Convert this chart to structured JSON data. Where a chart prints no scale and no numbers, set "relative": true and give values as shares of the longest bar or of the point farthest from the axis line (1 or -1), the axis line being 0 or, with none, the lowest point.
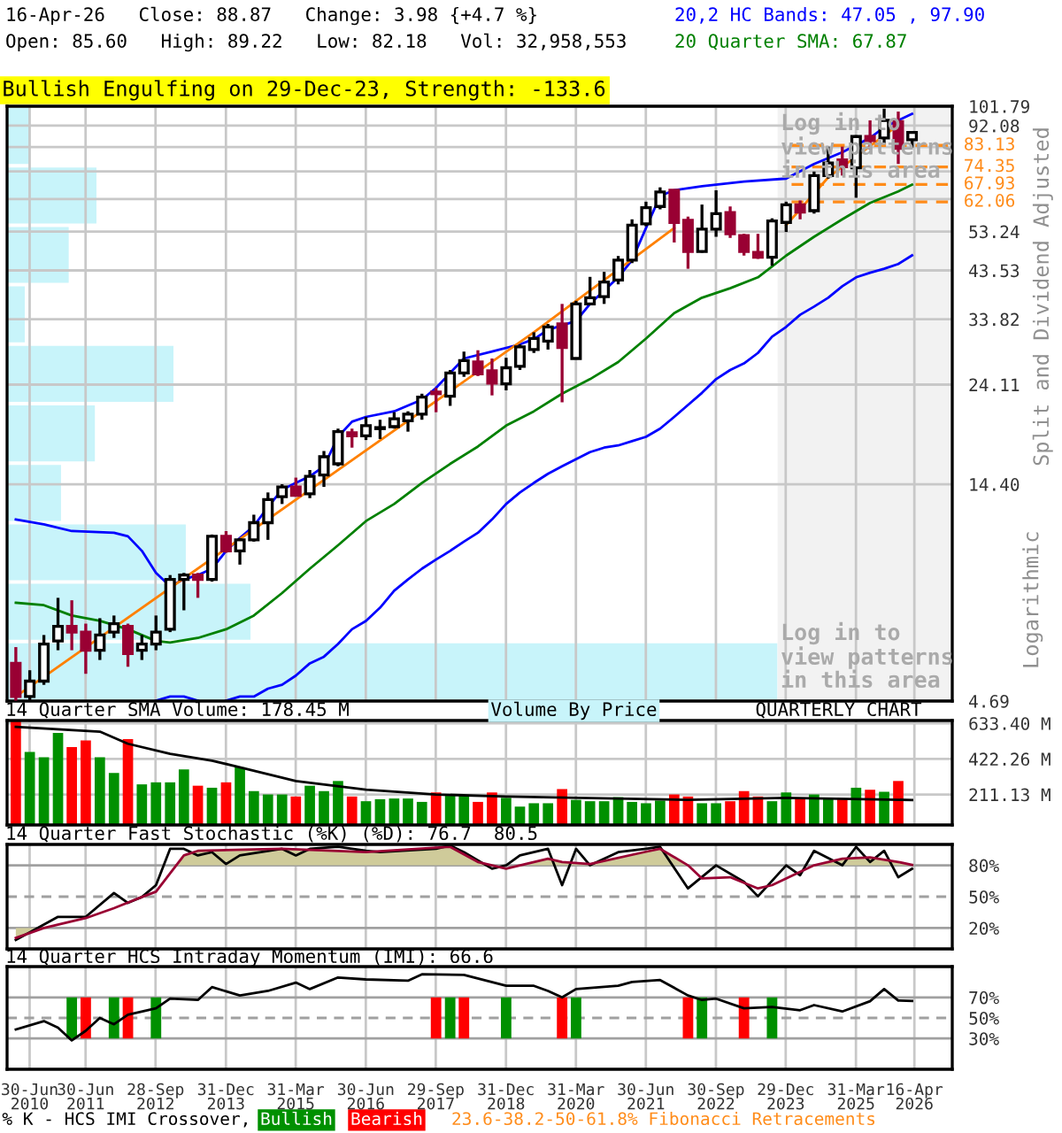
{
  "chart_data": [
    {
      "type": "candlestick",
      "title": "16-Apr-26   Close: 88.87   Change: 3.98 {+4.7 %}",
      "subtitle": "Open: 85.60   High: 89.22   Low: 82.18   Vol: 32,958,553",
      "ylabel": "Split and Dividend Adjusted",
      "x": [
        "2010-04-01",
        "2010-07-01",
        "2010-10-01",
        "2011-01-01",
        "2011-04-01",
        "2011-07-01",
        "2011-10-01",
        "2012-01-01",
        "2012-04-01",
        "2012-07-01",
        "2012-10-01",
        "2013-01-01",
        "2013-04-01",
        "2013-07-01",
        "2013-10-01",
        "2014-01-01",
        "2014-04-01",
        "2014-07-01",
        "2014-10-01",
        "2015-01-01",
        "2015-04-01",
        "2015-07-01",
        "2015-10-01",
        "2016-01-01",
        "2016-04-01",
        "2016-07-01",
        "2016-10-01",
        "2017-01-01",
        "2017-04-01",
        "2017-07-01",
        "2017-10-01",
        "2018-01-01",
        "2018-04-01",
        "2018-07-01",
        "2018-10-01",
        "2019-01-01",
        "2019-04-01",
        "2019-07-01",
        "2019-10-01",
        "2020-01-01",
        "2020-04-01",
        "2020-07-01",
        "2020-10-01",
        "2021-01-01",
        "2021-04-01",
        "2021-07-01",
        "2021-10-01",
        "2022-01-01",
        "2022-04-01",
        "2022-07-01",
        "2022-10-01",
        "2023-01-01",
        "2023-04-01",
        "2023-07-01",
        "2023-10-01",
        "2024-01-01",
        "2024-04-01",
        "2024-07-01",
        "2024-10-01",
        "2025-01-01",
        "2025-04-01",
        "2025-07-01",
        "2025-10-01",
        "2026-01-01",
        "2026-04-01"
      ],
      "ohlc": [
        [
          5.7,
          6.2,
          4.7,
          4.8
        ],
        [
          4.8,
          5.5,
          4.7,
          5.2
        ],
        [
          5.2,
          6.6,
          5.1,
          6.3
        ],
        [
          6.4,
          8.0,
          6.1,
          6.9
        ],
        [
          6.9,
          7.9,
          6.1,
          6.7
        ],
        [
          6.7,
          7.0,
          5.4,
          6.1
        ],
        [
          6.1,
          7.2,
          5.8,
          6.6
        ],
        [
          6.7,
          7.3,
          6.5,
          7.0
        ],
        [
          6.9,
          7.0,
          5.6,
          6.0
        ],
        [
          6.1,
          6.6,
          5.8,
          6.3
        ],
        [
          6.3,
          7.3,
          6.1,
          6.7
        ],
        [
          6.8,
          9.0,
          6.7,
          8.8
        ],
        [
          8.8,
          9.1,
          7.5,
          9.0
        ],
        [
          9.0,
          9.1,
          8.0,
          8.8
        ],
        [
          8.8,
          11.1,
          8.7,
          11.0
        ],
        [
          11.0,
          11.3,
          10.1,
          10.2
        ],
        [
          10.2,
          10.9,
          9.5,
          10.8
        ],
        [
          10.8,
          12.3,
          10.7,
          11.8
        ],
        [
          11.8,
          13.8,
          10.8,
          13.3
        ],
        [
          13.5,
          14.4,
          13.0,
          14.2
        ],
        [
          14.2,
          14.9,
          13.5,
          13.6
        ],
        [
          13.7,
          15.5,
          13.4,
          15.0
        ],
        [
          15.1,
          17.1,
          14.2,
          16.6
        ],
        [
          16.0,
          19.2,
          15.8,
          18.9
        ],
        [
          18.8,
          19.2,
          17.4,
          18.5
        ],
        [
          18.5,
          20.4,
          18.1,
          19.5
        ],
        [
          19.2,
          20.1,
          18.2,
          19.3
        ],
        [
          19.4,
          20.9,
          19.2,
          20.2
        ],
        [
          20.0,
          21.0,
          18.9,
          20.7
        ],
        [
          20.7,
          23.0,
          20.1,
          22.6
        ],
        [
          23.2,
          23.7,
          20.9,
          23.0
        ],
        [
          22.7,
          26.0,
          21.6,
          25.6
        ],
        [
          25.6,
          28.6,
          25.1,
          27.3
        ],
        [
          27.1,
          28.8,
          25.2,
          25.5
        ],
        [
          25.9,
          27.6,
          22.8,
          24.3
        ],
        [
          24.2,
          27.7,
          23.4,
          26.3
        ],
        [
          26.5,
          29.7,
          26.0,
          29.3
        ],
        [
          28.9,
          31.6,
          28.4,
          30.6
        ],
        [
          30.2,
          33.0,
          28.9,
          32.5
        ],
        [
          33.0,
          36.6,
          22.0,
          29.2
        ],
        [
          27.6,
          37.2,
          27.6,
          36.6
        ],
        [
          36.6,
          42.1,
          36.6,
          37.8
        ],
        [
          38.0,
          43.2,
          36.6,
          41.0
        ],
        [
          41.4,
          46.9,
          40.5,
          45.9
        ],
        [
          45.9,
          56.7,
          45.2,
          55.0
        ],
        [
          55.4,
          62.1,
          54.7,
          60.2
        ],
        [
          60.6,
          66.9,
          59.7,
          65.3
        ],
        [
          65.9,
          65.9,
          50.3,
          55.8
        ],
        [
          56.4,
          57.5,
          43.9,
          48.0
        ],
        [
          48.0,
          61.2,
          47.7,
          53.9
        ],
        [
          53.9,
          65.9,
          51.8,
          58.4
        ],
        [
          58.7,
          60.6,
          51.5,
          52.6
        ],
        [
          52.1,
          52.6,
          47.0,
          48.0
        ],
        [
          47.8,
          52.6,
          46.2,
          46.6
        ],
        [
          46.6,
          57.0,
          44.6,
          56.2
        ],
        [
          55.8,
          62.1,
          53.1,
          61.1
        ],
        [
          61.1,
          62.5,
          56.7,
          58.9
        ],
        [
          59.3,
          72.6,
          58.4,
          71.1
        ],
        [
          71.1,
          82.6,
          70.0,
          75.9
        ],
        [
          77.1,
          82.6,
          71.1,
          74.4
        ],
        [
          74.0,
          87.6,
          63.4,
          87.0
        ],
        [
          87.0,
          94.6,
          81.4,
          85.2
        ],
        [
          86.4,
          100.5,
          83.9,
          94.6
        ],
        [
          94.0,
          99.0,
          75.5,
          81.9
        ],
        [
          85.6,
          89.22,
          82.18,
          88.87
        ]
      ],
      "series": [
        {
          "name": "20,2 HC Bands: 47.05 , 97.90",
          "type": "line",
          "color": "#0000ff",
          "x": [
            "2010-04-01",
            "2010-10-01",
            "2011-04-01",
            "2012-01-01",
            "2012-04-01",
            "2012-07-01",
            "2012-10-01",
            "2013-01-01",
            "2013-04-01",
            "2013-07-01",
            "2013-10-01",
            "2014-01-01",
            "2014-04-01",
            "2014-07-01",
            "2014-10-01",
            "2015-01-01",
            "2015-04-01",
            "2015-07-01",
            "2015-10-01",
            "2016-01-01",
            "2016-04-01",
            "2016-07-01",
            "2017-01-01",
            "2017-07-01",
            "2017-10-01",
            "2018-01-01",
            "2018-04-01",
            "2018-10-01",
            "2019-04-01",
            "2019-07-01",
            "2019-10-01",
            "2020-04-01",
            "2020-07-01",
            "2021-01-01",
            "2021-04-01",
            "2021-07-01",
            "2021-10-01",
            "2022-01-01",
            "2022-07-01",
            "2023-04-01",
            "2024-01-01",
            "2024-07-01",
            "2025-01-01",
            "2025-07-01",
            "2025-10-01",
            "2026-04-01"
          ],
          "values": [
            12.0,
            11.7,
            11.3,
            11.2,
            11.0,
            10.2,
            9.1,
            8.5,
            8.8,
            9.0,
            9.3,
            10.2,
            10.9,
            11.6,
            12.8,
            14.0,
            14.5,
            15.0,
            15.8,
            18.4,
            19.9,
            20.4,
            21.0,
            22.3,
            23.7,
            25.6,
            27.6,
            28.6,
            29.7,
            30.5,
            32.0,
            33.5,
            36.6,
            42.0,
            45.9,
            54.2,
            64.0,
            65.9,
            67.3,
            68.9,
            70.0,
            75.5,
            80.2,
            86.4,
            91.3,
            97.9
          ]
        },
        {
          "type": "line",
          "color": "#0000ff",
          "values": [
            null,
            null,
            null,
            null,
            null,
            null,
            null,
            null,
            null,
            null,
            4.7,
            4.8,
            4.8,
            4.7,
            null,
            4.7,
            4.8,
            4.8,
            5.0,
            5.1,
            5.35,
            5.7,
            5.9,
            6.3,
            6.8,
            7.1,
            7.6,
            8.3,
            8.8,
            9.3,
            9.75,
            10.2,
            10.7,
            11.2,
            12.0,
            13.0,
            13.8,
            14.5,
            15.2,
            15.8,
            16.4,
            17.0,
            17.4,
            17.6,
            18.0,
            18.4,
            19.2,
            20.4,
            21.7,
            23.1,
            24.8,
            26.0,
            26.9,
            28.4,
            30.9,
            32.5,
            34.6,
            36.1,
            37.8,
            40.1,
            42.0,
            43.0,
            43.9,
            45.0,
            47.05
          ]
        },
        {
          "name": "20 Quarter SMA: 67.87",
          "type": "line",
          "color": "#008000",
          "x": [
            "2010-04-01",
            "2010-10-01",
            "2011-04-01",
            "2011-10-01",
            "2012-04-01",
            "2012-10-01",
            "2013-01-01",
            "2013-07-01",
            "2014-01-01",
            "2014-07-01",
            "2015-01-01",
            "2015-07-01",
            "2016-01-01",
            "2016-07-01",
            "2017-01-01",
            "2017-07-01",
            "2018-01-01",
            "2018-07-01",
            "2019-01-01",
            "2019-07-01",
            "2020-01-01",
            "2020-07-01",
            "2021-01-01",
            "2021-07-01",
            "2022-01-01",
            "2022-07-01",
            "2023-01-01",
            "2023-07-01",
            "2024-01-01",
            "2024-07-01",
            "2025-01-01",
            "2025-07-01",
            "2026-01-01",
            "2026-04-01"
          ],
          "values": [
            7.8,
            7.7,
            7.3,
            7.1,
            6.8,
            6.4,
            6.35,
            6.5,
            6.8,
            7.3,
            8.2,
            9.3,
            10.5,
            11.9,
            13.0,
            14.5,
            16.0,
            17.5,
            19.5,
            21.0,
            23.0,
            24.8,
            27.1,
            30.6,
            34.9,
            37.8,
            39.7,
            42.0,
            47.0,
            51.8,
            56.7,
            61.7,
            65.5,
            67.87
          ]
        },
        {
          "type": "line",
          "color": "#ff8000",
          "x": [
            "2010-04-01",
            "2019-07-01",
            "2022-01-01",
            "2023-01-01",
            "2024-01-01",
            "2024-10-01",
            "2026-01-01"
          ],
          "values": [
            4.8,
            31.6,
            54.2,
            null,
            55.0,
            70.4,
            92.4
          ]
        }
      ],
      "xlim": [
        "2010-02-03",
        "2026-12-19"
      ],
      "ylim": [
        4.69,
        101.79
      ],
      "log": true,
      "xticks": [
        {
          "value": "2010-06-30",
          "label": null
        },
        {
          "value": "2011-06-30",
          "label": null
        },
        {
          "value": "2012-09-28",
          "label": null
        },
        {
          "value": "2013-12-31",
          "label": null
        },
        {
          "value": "2015-03-31",
          "label": null
        },
        {
          "value": "2016-06-30",
          "label": null
        },
        {
          "value": "2017-09-29",
          "label": null
        },
        {
          "value": "2018-12-31",
          "label": null
        },
        {
          "value": "2020-03-31",
          "label": null
        },
        {
          "value": "2021-06-30",
          "label": null
        },
        {
          "value": "2022-09-30",
          "label": null
        },
        {
          "value": "2023-12-29",
          "label": null
        },
        {
          "value": "2025-03-31",
          "label": null
        },
        {
          "value": "2026-04-16",
          "label": null
        }
      ],
      "yticks": [
        {
          "value": 4.69,
          "label": "4.69"
        },
        {
          "value": 14.4,
          "label": "14.40"
        },
        24.11,
        33.82,
        43.53,
        53.24,
        {
          "value": 62.95,
          "label": null
        },
        {
          "value": 72.66,
          "label": null
        },
        {
          "value": 82.37,
          "label": null
        },
        92.08,
        101.79
      ],
      "grid": true,
      "tick_labels": "y",
      "legend": "top right",
      "ref_lines": [
        {
          "axis": "y",
          "value": 83.13,
          "label": "83.13",
          "color": "#ff8c1a",
          "line_style": "dashed"
        },
        {
          "axis": "y",
          "value": 74.35,
          "label": "74.35",
          "color": "#ff8c1a",
          "line_style": "dashed"
        },
        {
          "axis": "y",
          "value": 67.93,
          "label": "67.93",
          "color": "#ff8c1a",
          "line_style": "dashed"
        },
        {
          "axis": "y",
          "value": 62.06,
          "label": "62.06",
          "color": "#ff8c1a",
          "line_style": "dashed"
        }
      ],
      "bands": [
        {
          "axis": "x",
          "from": "2023-11-06",
          "to": "2026-12-19",
          "label": "Log in to\nview patterns\nin this area",
          "color": "#f2f2f2"
        }
      ],
      "annotations": [
        "Bullish Engulfing on 29-Dec-23, Strength: -133.6",
        "Log in to\nview patterns\nin this area",
        "Logarithmic",
        "23.6-38.2-50-61.8% Fibonacci Retracements"
      ]
    },
    {
      "type": "bar",
      "title": "Volume By Price",
      "orientation": "horizontal",
      "relative": true,
      "tick_labels": false,
      "color": "#c8f4fa",
      "categories": [
        null,
        null,
        null,
        null,
        null,
        null,
        null,
        null,
        null,
        null
      ],
      "values": [
        0.03,
        0.116,
        0.08,
        0.023,
        0.216,
        0.114,
        0.07,
        0.232,
        0.316,
        1
      ]
    },
    {
      "type": "bar",
      "title": "14 Quarter SMA Volume: 178.45 M",
      "x": [
        "2010-04-01",
        "2010-07-01",
        "2010-10-01",
        "2011-01-01",
        "2011-04-01",
        "2011-07-01",
        "2011-10-01",
        "2012-01-01",
        "2012-04-01",
        "2012-07-01",
        "2012-10-01",
        "2013-01-01",
        "2013-04-01",
        "2013-07-01",
        "2013-10-01",
        "2014-01-01",
        "2014-04-01",
        "2014-07-01",
        "2014-10-01",
        "2015-01-01",
        "2015-04-01",
        "2015-07-01",
        "2015-10-01",
        "2016-01-01",
        "2016-04-01",
        "2016-07-01",
        "2016-10-01",
        "2017-01-01",
        "2017-04-01",
        "2017-07-01",
        "2017-10-01",
        "2018-01-01",
        "2018-04-01",
        "2018-07-01",
        "2018-10-01",
        "2019-01-01",
        "2019-04-01",
        "2019-07-01",
        "2019-10-01",
        "2020-01-01",
        "2020-04-01",
        "2020-07-01",
        "2020-10-01",
        "2021-01-01",
        "2021-04-01",
        "2021-07-01",
        "2021-10-01",
        "2022-01-01",
        "2022-04-01",
        "2022-07-01",
        "2022-10-01",
        "2023-01-01",
        "2023-04-01",
        "2023-07-01",
        "2023-10-01",
        "2024-01-01",
        "2024-04-01",
        "2024-07-01",
        "2024-10-01",
        "2025-01-01",
        "2025-04-01",
        "2025-07-01",
        "2025-10-01",
        "2026-01-01",
        "2026-04-01"
      ],
      "series": [
        {
          "type": "bar",
          "values": [
            645,
            464,
            432,
            576,
            492,
            532,
            432,
            339,
            540,
            271,
            283,
            283,
            360,
            263,
            251,
            283,
            372,
            231,
            211,
            211,
            199,
            263,
            231,
            291,
            199,
            171,
            183,
            187,
            187,
            167,
            223,
            203,
            203,
            167,
            223,
            191,
            139,
            159,
            159,
            243,
            179,
            171,
            171,
            195,
            167,
            159,
            175,
            211,
            199,
            159,
            159,
            171,
            231,
            199,
            171,
            223,
            187,
            211,
            187,
            187,
            251,
            239,
            227,
            291,
            32.96
          ],
          "colors": [
            "#ff0000",
            "#009000",
            "#009000",
            "#009000",
            "#ff0000",
            "#ff0000",
            "#009000",
            "#009000",
            "#ff0000",
            "#009000",
            "#009000",
            "#009000",
            "#009000",
            "#ff0000",
            "#009000",
            "#ff0000",
            "#009000",
            "#009000",
            "#009000",
            "#009000",
            "#ff0000",
            "#009000",
            "#009000",
            "#009000",
            "#ff0000",
            "#009000",
            "#009000",
            "#009000",
            "#009000",
            "#009000",
            "#ff0000",
            "#009000",
            "#009000",
            "#ff0000",
            "#ff0000",
            "#009000",
            "#009000",
            "#009000",
            "#009000",
            "#ff0000",
            "#009000",
            "#009000",
            "#009000",
            "#009000",
            "#009000",
            "#009000",
            "#009000",
            "#ff0000",
            "#ff0000",
            "#009000",
            "#009000",
            "#ff0000",
            "#ff0000",
            "#ff0000",
            "#009000",
            "#009000",
            "#ff0000",
            "#009000",
            "#009000",
            "#ff0000",
            "#009000",
            "#ff0000",
            "#009000",
            "#ff0000",
            "#009000"
          ]
        },
        {
          "type": "line",
          "color": "#000000",
          "x": [
            "2010-04-01",
            "2011-10-01",
            "2012-04-01",
            "2013-01-01",
            "2013-10-01",
            "2014-04-01",
            "2015-04-01",
            "2016-07-01",
            "2017-10-01",
            "2019-01-01",
            "2022-04-01",
            "2024-01-01",
            "2026-04-01"
          ],
          "values": [
            612,
            584,
            512,
            452,
            412,
            372,
            291,
            239,
            211,
            199,
            179,
            191,
            178.45
          ]
        }
      ],
      "xlim": [
        "2010-02-03",
        "2026-12-19"
      ],
      "ylim": [
        30,
        650
      ],
      "xticks": [
        {
          "value": "2010-06-30",
          "label": null
        },
        {
          "value": "2011-06-30",
          "label": null
        },
        {
          "value": "2012-09-28",
          "label": null
        },
        {
          "value": "2013-12-31",
          "label": null
        },
        {
          "value": "2015-03-31",
          "label": null
        },
        {
          "value": "2016-06-30",
          "label": null
        },
        {
          "value": "2017-09-29",
          "label": null
        },
        {
          "value": "2018-12-31",
          "label": null
        },
        {
          "value": "2020-03-31",
          "label": null
        },
        {
          "value": "2021-06-30",
          "label": null
        },
        {
          "value": "2022-09-30",
          "label": null
        },
        {
          "value": "2023-12-29",
          "label": null
        },
        {
          "value": "2025-03-31",
          "label": null
        },
        {
          "value": "2026-04-16",
          "label": null
        }
      ],
      "yticks": [
        {
          "value": 211.13,
          "label": "211.13 M"
        },
        {
          "value": 422.26,
          "label": "422.26 M"
        },
        {
          "value": 633.4,
          "label": "633.40 M"
        }
      ],
      "grid": true,
      "tick_labels": "y",
      "annotations": [
        "QUARTERLY CHART"
      ]
    },
    {
      "type": "line",
      "title": "14 Quarter Fast Stochastic (%K) (%D): 76.7  80.5",
      "series": [
        {
          "type": "line",
          "color": "#000000",
          "x": [
            "2010-04-01",
            "2011-01-01",
            "2011-07-01",
            "2012-01-01",
            "2012-04-01",
            "2012-07-01",
            "2012-10-01",
            "2013-01-01",
            "2013-04-01",
            "2013-07-01",
            "2013-10-01",
            "2014-01-01",
            "2014-04-01",
            "2015-01-01",
            "2015-04-01",
            "2015-07-01",
            "2016-01-01",
            "2016-07-01",
            "2016-10-01",
            "2017-10-01",
            "2018-01-01",
            "2018-04-01",
            "2018-10-01",
            "2019-01-01",
            "2019-04-01",
            "2019-10-01",
            "2020-01-01",
            "2020-04-01",
            "2020-07-01",
            "2021-01-01",
            "2021-07-01",
            "2021-10-01",
            "2022-04-01",
            "2022-10-01",
            "2023-04-01",
            "2023-07-01",
            "2024-01-01",
            "2024-04-01",
            "2024-07-01",
            "2025-01-01",
            "2025-04-01",
            "2025-07-01",
            "2025-10-01",
            "2026-01-01",
            "2026-04-01"
          ],
          "values": [
            8.6,
            30.7,
            30.7,
            53.5,
            44.0,
            49.7,
            61.0,
            95.8,
            95.8,
            89.5,
            92.6,
            81.3,
            89.5,
            95.8,
            89.5,
            95.8,
            97.7,
            93.9,
            92.6,
            95.8,
            99.0,
            92.6,
            76.8,
            80.0,
            89.5,
            95.8,
            61.0,
            95.8,
            80.0,
            92.6,
            95.8,
            97.7,
            57.9,
            80.0,
            64.2,
            50.3,
            80.0,
            70.5,
            93.9,
            80.0,
            97.7,
            83.2,
            93.9,
            68.6,
            76.7
          ]
        },
        {
          "type": "line",
          "color": "#990033",
          "x": [
            "2010-04-01",
            "2010-10-01",
            "2011-07-01",
            "2012-01-01",
            "2012-07-01",
            "2012-10-01",
            "2013-04-01",
            "2013-07-01",
            "2015-01-01",
            "2016-07-01",
            "2018-01-01",
            "2018-07-01",
            "2019-01-01",
            "2019-10-01",
            "2020-01-01",
            "2020-07-01",
            "2021-07-01",
            "2021-10-01",
            "2022-04-01",
            "2022-07-01",
            "2023-01-01",
            "2023-07-01",
            "2023-10-01",
            "2024-07-01",
            "2025-01-01",
            "2025-07-01",
            "2026-01-01",
            "2026-04-01"
          ],
          "values": [
            10.5,
            20.0,
            29.5,
            39.0,
            49.7,
            54.8,
            89.5,
            93.9,
            95.8,
            92.6,
            97.7,
            83.2,
            76.8,
            86.3,
            83.2,
            81.3,
            93.0,
            95.8,
            80.0,
            67.4,
            68.6,
            57.9,
            61.0,
            80.0,
            86.3,
            87.6,
            83.2,
            80.5
          ]
        }
      ],
      "xlim": [
        "2010-02-03",
        "2026-12-19"
      ],
      "ylim": [
        0,
        100
      ],
      "xticks": [
        {
          "value": "2010-06-30",
          "label": null
        },
        {
          "value": "2011-06-30",
          "label": null
        },
        {
          "value": "2012-09-28",
          "label": null
        },
        {
          "value": "2013-12-31",
          "label": null
        },
        {
          "value": "2015-03-31",
          "label": null
        },
        {
          "value": "2016-06-30",
          "label": null
        },
        {
          "value": "2017-09-29",
          "label": null
        },
        {
          "value": "2018-12-31",
          "label": null
        },
        {
          "value": "2020-03-31",
          "label": null
        },
        {
          "value": "2021-06-30",
          "label": null
        },
        {
          "value": "2022-09-30",
          "label": null
        },
        {
          "value": "2023-12-29",
          "label": null
        },
        {
          "value": "2025-03-31",
          "label": null
        },
        {
          "value": "2026-04-16",
          "label": null
        }
      ],
      "yticks": [
        {
          "value": 20,
          "label": "20%"
        },
        {
          "value": 50,
          "label": "50%"
        },
        {
          "value": 80,
          "label": "80%"
        }
      ],
      "grid": "x",
      "tick_labels": "y",
      "ref_lines": [
        {
          "axis": "y",
          "value": 20
        },
        {
          "axis": "y",
          "value": 50,
          "line_style": "dashed"
        },
        {
          "axis": "y",
          "value": 80
        }
      ]
    },
    {
      "type": "line",
      "title": "14 Quarter HCS Intraday Momentum (IMI): 66.6",
      "legend_title": "% K - HCS IMI Crossover,",
      "legend": "bottom",
      "series": [
        {
          "type": "line",
          "color": "#000000",
          "x": [
            "2010-04-01",
            "2010-10-01",
            "2011-01-01",
            "2011-04-01",
            "2011-07-01",
            "2011-10-01",
            "2012-01-01",
            "2012-04-01",
            "2012-10-01",
            "2013-01-01",
            "2013-07-01",
            "2013-10-01",
            "2014-04-01",
            "2014-10-01",
            "2015-04-01",
            "2015-07-01",
            "2016-01-01",
            "2016-07-01",
            "2017-04-01",
            "2017-07-01",
            "2018-04-01",
            "2019-01-01",
            "2019-07-01",
            "2019-10-01",
            "2020-01-01",
            "2020-04-01",
            "2021-01-01",
            "2021-04-01",
            "2021-10-01",
            "2022-04-01",
            "2022-07-01",
            "2022-10-01",
            "2023-04-01",
            "2023-10-01",
            "2024-04-01",
            "2024-07-01",
            "2025-01-01",
            "2025-07-01",
            "2025-10-01",
            "2026-01-01",
            "2026-04-01"
          ],
          "values": [
            38.8,
            46.9,
            40.6,
            28.1,
            37.5,
            50.0,
            43.8,
            53.1,
            59.4,
            68.8,
            67.5,
            80.0,
            71.9,
            76.3,
            84.4,
            78.1,
            89.4,
            87.5,
            86.3,
            92.5,
            91.9,
            81.3,
            81.3,
            76.3,
            70,
            78.1,
            81.3,
            85,
            86.9,
            71.9,
            67.5,
            68.8,
            59.4,
            60.6,
            57.5,
            62.5,
            56.3,
            66.3,
            78.1,
            66.9,
            66.6
          ]
        },
        {
          "type": "bar",
          "name": "Bullish",
          "color": "#009000",
          "x": [
            "2011-04-01",
            "2012-01-01",
            "2012-10-01",
            "2018-01-01",
            "2019-01-01",
            "2020-04-01",
            "2022-07-01",
            "2023-10-01"
          ],
          "values": [
            40,
            40,
            40,
            40,
            40,
            40,
            40,
            40
          ],
          "base": [
            30,
            30,
            30,
            30,
            30,
            30,
            30,
            30
          ]
        },
        {
          "type": "bar",
          "name": "Bearish",
          "color": "#ff0000",
          "x": [
            "2011-07-01",
            "2012-04-01",
            "2017-10-01",
            "2018-04-01",
            "2020-01-01",
            "2022-04-01",
            "2023-04-01"
          ],
          "values": [
            40,
            40,
            40,
            40,
            40,
            40,
            40
          ],
          "base": [
            30,
            30,
            30,
            30,
            30,
            30,
            30
          ]
        }
      ],
      "xlim": [
        "2010-02-03",
        "2026-12-19"
      ],
      "ylim": [
        0,
        100
      ],
      "xticks": [
        {
          "value": "2010-06-30",
          "label": "30-Jun\n2010"
        },
        {
          "value": "2011-06-30",
          "label": "30-Jun\n2011"
        },
        {
          "value": "2012-09-28",
          "label": "28-Sep\n2012"
        },
        {
          "value": "2013-12-31",
          "label": "31-Dec\n2013"
        },
        {
          "value": "2015-03-31",
          "label": "31-Mar\n2015"
        },
        {
          "value": "2016-06-30",
          "label": "30-Jun\n2016"
        },
        {
          "value": "2017-09-29",
          "label": "29-Sep\n2017"
        },
        {
          "value": "2018-12-31",
          "label": "31-Dec\n2018"
        },
        {
          "value": "2020-03-31",
          "label": "31-Mar\n2020"
        },
        {
          "value": "2021-06-30",
          "label": "30-Jun\n2021"
        },
        {
          "value": "2022-09-30",
          "label": "30-Sep\n2022"
        },
        {
          "value": "2023-12-29",
          "label": "29-Dec\n2023"
        },
        {
          "value": "2025-03-31",
          "label": "31-Mar\n2025"
        },
        {
          "value": "2026-04-16",
          "label": "16-Apr\n2026"
        }
      ],
      "yticks": [
        {
          "value": 30,
          "label": "30%"
        },
        {
          "value": 50,
          "label": "50%"
        },
        {
          "value": 70,
          "label": "70%"
        }
      ],
      "grid": "x",
      "ref_lines": [
        {
          "axis": "y",
          "value": 30
        },
        {
          "axis": "y",
          "value": 50,
          "line_style": "dashed"
        },
        {
          "axis": "y",
          "value": 70
        }
      ]
    }
  ]
}
